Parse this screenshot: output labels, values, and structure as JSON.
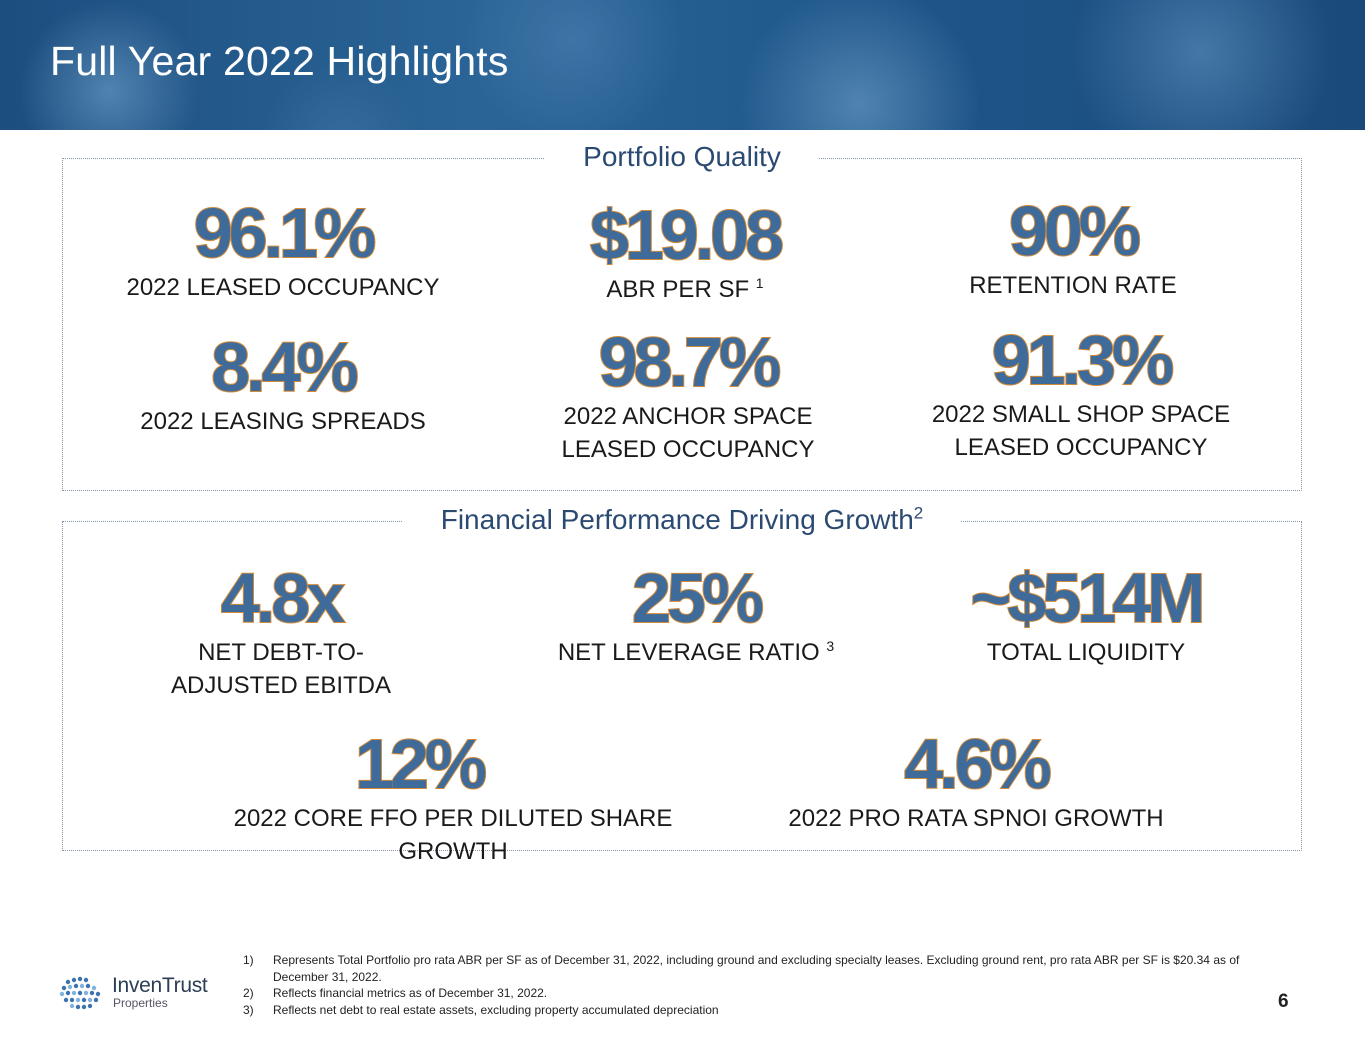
{
  "header": {
    "title": "Full Year 2022 Highlights"
  },
  "portfolio_quality": {
    "heading": "Portfolio Quality",
    "stats": [
      {
        "value": "96.1%",
        "label": "2022 LEASED OCCUPANCY",
        "label2": ""
      },
      {
        "value": "$19.08",
        "label": "ABR PER SF",
        "footnote": "1"
      },
      {
        "value": "90%",
        "label": "RETENTION RATE"
      },
      {
        "value": "8.4%",
        "label": "2022 LEASING SPREADS"
      },
      {
        "value": "98.7%",
        "label": "2022 ANCHOR SPACE",
        "label2": "LEASED OCCUPANCY"
      },
      {
        "value": "91.3%",
        "label": "2022 SMALL SHOP SPACE",
        "label2": "LEASED OCCUPANCY"
      }
    ]
  },
  "financial_performance": {
    "heading": "Financial Performance Driving Growth",
    "heading_footnote": "2",
    "stats": [
      {
        "value": "4.8x",
        "label": "NET DEBT-TO-",
        "label2": "ADJUSTED EBITDA"
      },
      {
        "value": "25%",
        "label": "NET LEVERAGE RATIO",
        "footnote": "3"
      },
      {
        "value": "~$514M",
        "label": "TOTAL LIQUIDITY"
      },
      {
        "value": "12%",
        "label": "2022 CORE FFO PER DILUTED SHARE GROWTH"
      },
      {
        "value": "4.6%",
        "label": "2022 PRO RATA SPNOI GROWTH"
      }
    ]
  },
  "footnotes": [
    {
      "num": "1)",
      "text": "Represents Total Portfolio pro rata ABR per SF as of December 31, 2022, including ground and excluding specialty leases. Excluding ground rent, pro rata ABR per SF is $20.34 as of December 31, 2022."
    },
    {
      "num": "2)",
      "text": "Reflects financial metrics as of December 31, 2022."
    },
    {
      "num": "3)",
      "text": "Reflects net debt to real estate assets, excluding property accumulated depreciation"
    }
  ],
  "logo": {
    "name": "InvenTrust",
    "sub": "Properties"
  },
  "page_number": "6"
}
